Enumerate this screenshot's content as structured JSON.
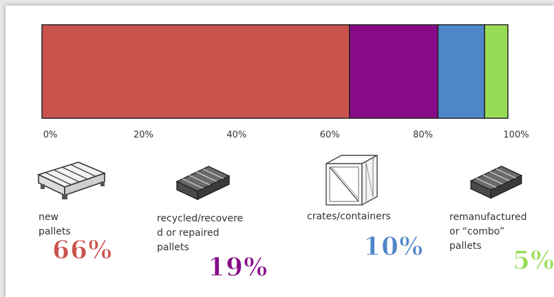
{
  "chart_data": {
    "type": "bar",
    "orientation": "horizontal-stacked",
    "series": [
      {
        "name": "new pallets",
        "value": 66,
        "color": "#c9524c"
      },
      {
        "name": "recycled/recovered or repaired pallets",
        "value": 19,
        "color": "#870b87"
      },
      {
        "name": "crates/containers",
        "value": 10,
        "color": "#4f86c9"
      },
      {
        "name": "remanufactured or \"combo\" pallets",
        "value": 5,
        "color": "#98dc55"
      }
    ],
    "xlim": [
      0,
      100
    ],
    "ticks": [
      "0%",
      "20%",
      "40%",
      "60%",
      "80%",
      "100%"
    ],
    "grid": false
  },
  "items": [
    {
      "label_lines": [
        "new pallets"
      ],
      "percent": "66%",
      "color": "#c9524c",
      "icon": "pallet-icon"
    },
    {
      "label_lines": [
        "recycled/recovere",
        "d or repaired",
        "pallets"
      ],
      "percent": "19%",
      "color": "#870b87",
      "icon": "pallet-icon"
    },
    {
      "label_lines": [
        "crates/containers"
      ],
      "percent": "10%",
      "color": "#4f86c9",
      "icon": "crate-icon"
    },
    {
      "label_lines": [
        "remanufactured",
        "or “combo”",
        "pallets"
      ],
      "percent": "5%",
      "color": "#98dc55",
      "icon": "pallet-icon"
    }
  ]
}
